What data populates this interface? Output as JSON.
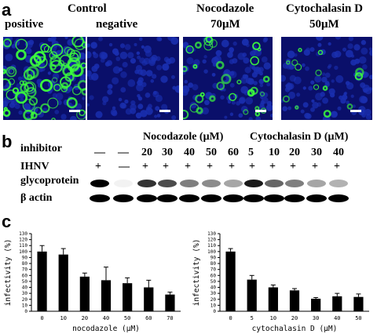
{
  "panels": {
    "a": "a",
    "b": "b",
    "c": "c"
  },
  "micro": {
    "control_label": "Control",
    "positive_label": "positive",
    "negative_label": "negative",
    "nocodazole_label": "Nocodazole",
    "nocodazole_dose": "70μM",
    "cytochalasin_label": "Cytochalasin D",
    "cytochalasin_dose": "50μM",
    "colors": {
      "nuclei": "#1a2fb0",
      "virus": "#3cff3c",
      "background": "#0a0f6a"
    }
  },
  "blot": {
    "nocodazole_header": "Nocodazole (μM)",
    "cytochalasin_header": "Cytochalasin D (μM)",
    "inhibitor_label": "inhibitor",
    "ihnv_label": "IHNV",
    "glycoprotein_label": "glycoprotein",
    "actin_label": "β actin",
    "inhibitor_values": [
      "—",
      "—",
      "20",
      "30",
      "40",
      "50",
      "60",
      "5",
      "10",
      "20",
      "30",
      "40"
    ],
    "ihnv_values": [
      "+",
      "—",
      "+",
      "+",
      "+",
      "+",
      "+",
      "+",
      "+",
      "+",
      "+",
      "+"
    ],
    "glyco_intensity": [
      1.0,
      0.05,
      0.8,
      0.7,
      0.5,
      0.45,
      0.35,
      0.9,
      0.6,
      0.5,
      0.35,
      0.3
    ]
  },
  "chart_data": [
    {
      "type": "bar",
      "categories": [
        "0",
        "10",
        "20",
        "40",
        "50",
        "60",
        "70"
      ],
      "values": [
        100,
        95,
        58,
        52,
        47,
        40,
        28
      ],
      "errors": [
        10,
        10,
        6,
        22,
        9,
        12,
        4
      ],
      "xlabel": "nocodazole (μM)",
      "ylabel": "infectivity (%)",
      "ylim": [
        0,
        130
      ],
      "yticks": [
        "0",
        "10",
        "20",
        "30",
        "40",
        "50",
        "60",
        "70",
        "80",
        "90",
        "100",
        "110",
        "120",
        "130"
      ]
    },
    {
      "type": "bar",
      "categories": [
        "0",
        "5",
        "10",
        "20",
        "30",
        "40",
        "50"
      ],
      "values": [
        100,
        53,
        40,
        35,
        21,
        25,
        24
      ],
      "errors": [
        5,
        7,
        4,
        3,
        2,
        5,
        5
      ],
      "xlabel": "cytochalasin D (μM)",
      "ylabel": "infectivity (%)",
      "ylim": [
        0,
        130
      ],
      "yticks": [
        "0",
        "10",
        "20",
        "30",
        "40",
        "50",
        "60",
        "70",
        "80",
        "90",
        "100",
        "110",
        "120",
        "130"
      ]
    }
  ]
}
